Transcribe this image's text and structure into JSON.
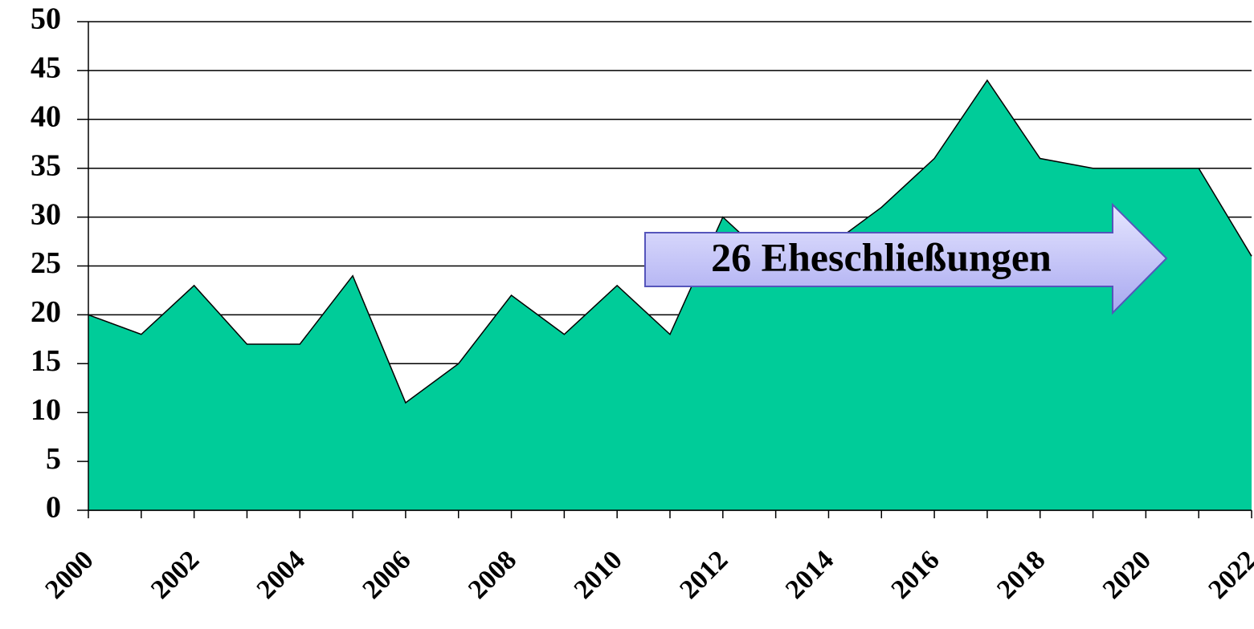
{
  "chart_data": {
    "type": "area",
    "x": [
      2000,
      2001,
      2002,
      2003,
      2004,
      2005,
      2006,
      2007,
      2008,
      2009,
      2010,
      2011,
      2012,
      2013,
      2014,
      2015,
      2016,
      2017,
      2018,
      2019,
      2020,
      2021,
      2022
    ],
    "values": [
      20,
      18,
      23,
      17,
      17,
      24,
      11,
      15,
      22,
      18,
      23,
      18,
      30,
      25,
      27,
      31,
      36,
      44,
      36,
      35,
      35,
      35,
      26
    ],
    "color": "#00cc99",
    "xlim": [
      2000,
      2022
    ],
    "xticks": [
      2000,
      2002,
      2004,
      2006,
      2008,
      2010,
      2012,
      2014,
      2016,
      2018,
      2020,
      2022
    ],
    "ylim": [
      0,
      50
    ],
    "yticks": [
      0,
      5,
      10,
      15,
      20,
      25,
      30,
      35,
      40,
      45,
      50
    ],
    "grid": true,
    "annotation": "26 Eheschließungen"
  }
}
